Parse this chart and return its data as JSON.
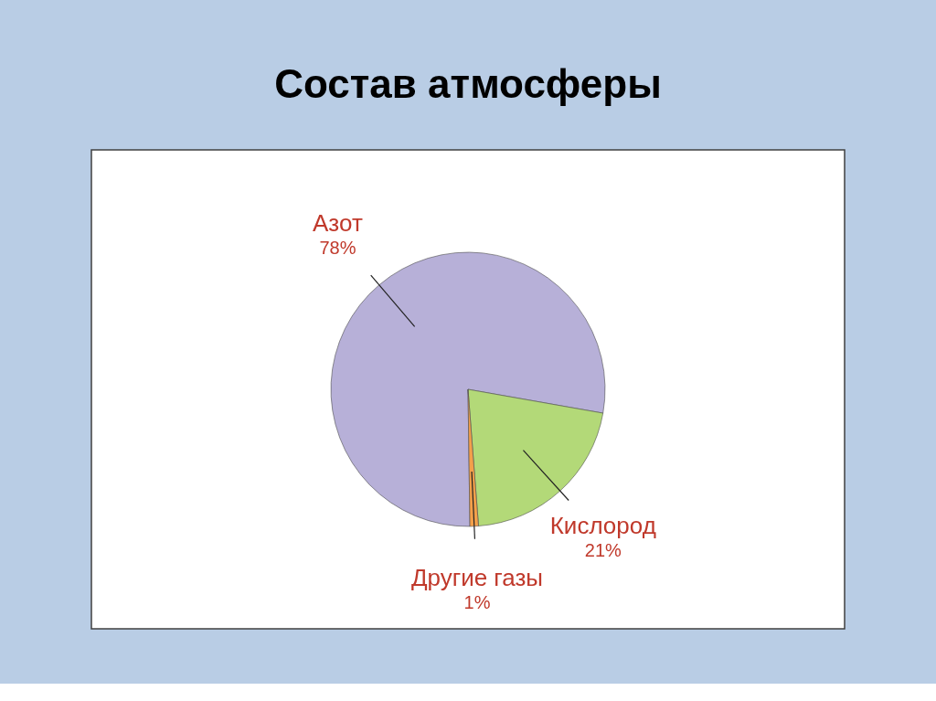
{
  "chart_data": {
    "type": "pie",
    "title": "Состав атмосферы",
    "categories": [
      "Азот",
      "Кислород",
      "Другие газы"
    ],
    "values": [
      78,
      21,
      1
    ],
    "value_labels": [
      "78%",
      "21%",
      "1%"
    ],
    "colors": [
      "#b7b0d8",
      "#b3d978",
      "#f4a04a"
    ]
  }
}
